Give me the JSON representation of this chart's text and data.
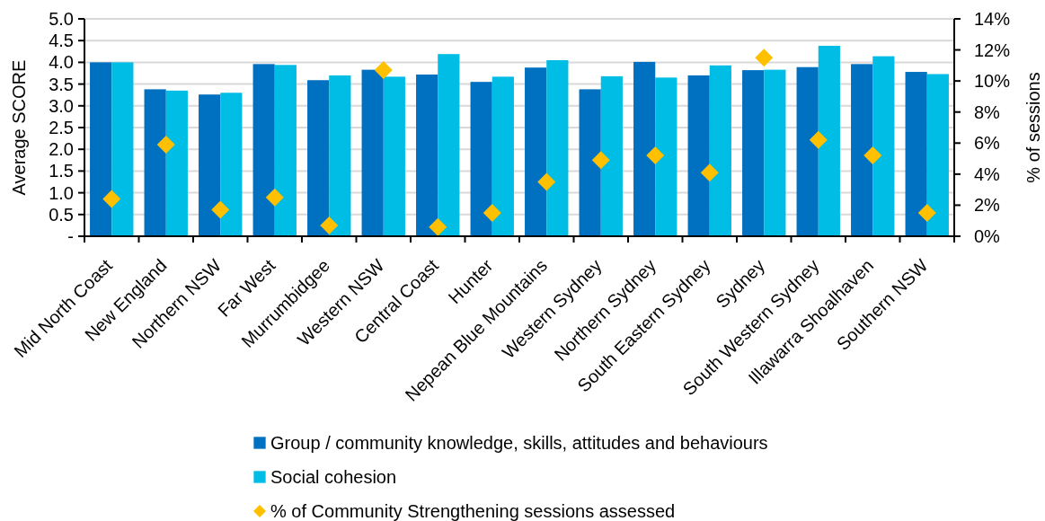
{
  "chart_data": {
    "type": "bar",
    "ylabel": "Average SCORE",
    "y2label": "% of sessions",
    "categories": [
      "Mid North Coast",
      "New England",
      "Northern NSW",
      "Far West",
      "Murrumbidgee",
      "Western NSW",
      "Central Coast",
      "Hunter",
      "Nepean Blue Mountains",
      "Western Sydney",
      "Northern Sydney",
      "South Eastern Sydney",
      "Sydney",
      "South Western Sydney",
      "Illawarra Shoalhaven",
      "Southern NSW"
    ],
    "series": [
      {
        "name": "Group / community knowledge, skills, attitudes and behaviours",
        "color": "#0070c0",
        "values": [
          4.0,
          3.38,
          3.26,
          3.96,
          3.59,
          3.83,
          3.72,
          3.55,
          3.88,
          3.38,
          4.01,
          3.7,
          3.82,
          3.89,
          3.96,
          3.78
        ]
      },
      {
        "name": "Social cohesion",
        "color": "#00bde6",
        "values": [
          4.0,
          3.35,
          3.3,
          3.94,
          3.7,
          3.67,
          4.19,
          3.67,
          4.05,
          3.68,
          3.65,
          3.93,
          3.83,
          4.38,
          4.14,
          3.73
        ]
      },
      {
        "name": "% of Community Strengthening sessions assessed",
        "type": "scatter",
        "axis": "y2",
        "marker": "diamond",
        "color": "#ffc000",
        "values": [
          2.4,
          5.9,
          1.7,
          2.5,
          0.7,
          10.7,
          0.6,
          1.5,
          3.5,
          4.9,
          5.2,
          4.1,
          11.5,
          6.2,
          5.2,
          1.5
        ]
      }
    ],
    "ylim": [
      0,
      5
    ],
    "yticks": [
      {
        "value": 0,
        "label": "-"
      },
      {
        "value": 0.5,
        "label": "0.5"
      },
      {
        "value": 1,
        "label": "1.0"
      },
      {
        "value": 1.5,
        "label": "1.5"
      },
      {
        "value": 2,
        "label": "2.0"
      },
      {
        "value": 2.5,
        "label": "2.5"
      },
      {
        "value": 3,
        "label": "3.0"
      },
      {
        "value": 3.5,
        "label": "3.5"
      },
      {
        "value": 4,
        "label": "4.0"
      },
      {
        "value": 4.5,
        "label": "4.5"
      },
      {
        "value": 5,
        "label": "5.0"
      }
    ],
    "y2lim": [
      0,
      14
    ],
    "y2ticks": [
      {
        "value": 0,
        "label": "0%"
      },
      {
        "value": 2,
        "label": "2%"
      },
      {
        "value": 4,
        "label": "4%"
      },
      {
        "value": 6,
        "label": "6%"
      },
      {
        "value": 8,
        "label": "8%"
      },
      {
        "value": 10,
        "label": "10%"
      },
      {
        "value": 12,
        "label": "12%"
      },
      {
        "value": 14,
        "label": "14%"
      }
    ],
    "grid": "y",
    "legend": "bottom"
  }
}
